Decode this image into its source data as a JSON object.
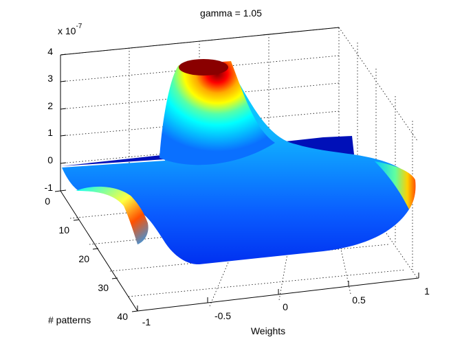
{
  "chart_data": {
    "type": "surface",
    "title": "gamma = 1.05",
    "z_exponent_label": {
      "base": "x 10",
      "exponent": "-7"
    },
    "xlabel": "Weights",
    "ylabel": "# patterns",
    "zlabel": "",
    "x_ticks": [
      "-1",
      "-0.5",
      "0",
      "0.5",
      "1"
    ],
    "y_ticks": [
      "0",
      "10",
      "20",
      "30",
      "40"
    ],
    "z_ticks": [
      "-1",
      "0",
      "1",
      "2",
      "3",
      "4"
    ],
    "xlim": [
      -1,
      1
    ],
    "ylim": [
      0,
      40
    ],
    "zlim": [
      -1,
      4
    ],
    "z_scale": 1e-07,
    "grid": true,
    "colormap": "jet",
    "colors": [
      "#00008f",
      "#0000ff",
      "#00ffff",
      "#ffff00",
      "#ff0000",
      "#800000"
    ],
    "surface_samples": [
      {
        "weights": -1.0,
        "patterns": 0,
        "value": -0.1
      },
      {
        "weights": 0.0,
        "patterns": 0,
        "value": 3.9
      },
      {
        "weights": 1.0,
        "patterns": 0,
        "value": -0.1
      },
      {
        "weights": 0.0,
        "patterns": 10,
        "value": 2.0
      },
      {
        "weights": -0.85,
        "patterns": 15,
        "value": 1.8
      },
      {
        "weights": 0.0,
        "patterns": 30,
        "value": 0.2
      },
      {
        "weights": 1.0,
        "patterns": 25,
        "value": 1.5
      }
    ]
  }
}
